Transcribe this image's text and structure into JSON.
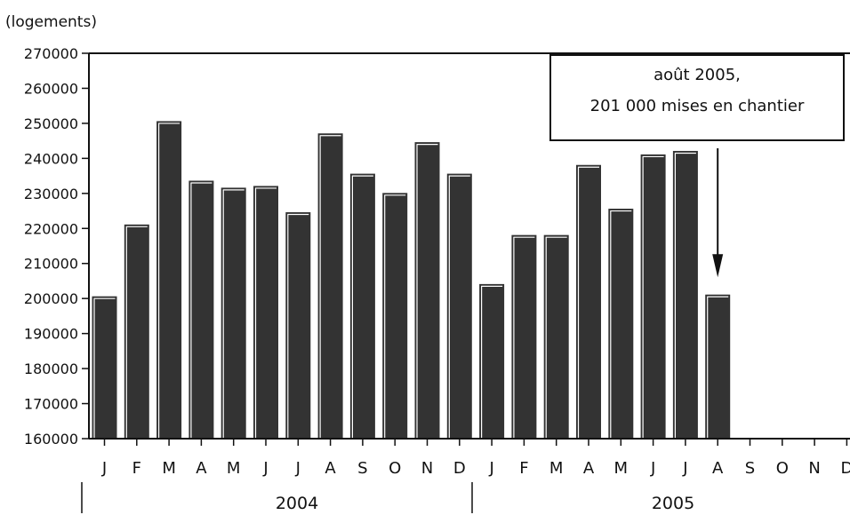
{
  "chart_data": {
    "type": "bar",
    "unit_label": "(logements)",
    "ylim": [
      160000,
      270000
    ],
    "y_ticks": [
      270000,
      260000,
      250000,
      240000,
      230000,
      220000,
      210000,
      200000,
      190000,
      180000,
      170000,
      160000
    ],
    "months": [
      "J",
      "F",
      "M",
      "A",
      "M",
      "J",
      "J",
      "A",
      "S",
      "O",
      "N",
      "D",
      "J",
      "F",
      "M",
      "A",
      "M",
      "J",
      "J",
      "A",
      "S",
      "O",
      "N",
      "D"
    ],
    "years": [
      "2004",
      "2005"
    ],
    "values": [
      200500,
      221000,
      250500,
      233500,
      231500,
      232000,
      224500,
      247000,
      235500,
      230000,
      244500,
      235500,
      204000,
      218000,
      218000,
      238000,
      225500,
      241000,
      242000,
      201000,
      null,
      null,
      null,
      null
    ],
    "annotation": {
      "line1": "août 2005,",
      "line2": "201 000 mises en chantier",
      "target_index": 19
    },
    "colors": {
      "bar": "#333333",
      "axis": "#111111"
    },
    "grid": false
  }
}
